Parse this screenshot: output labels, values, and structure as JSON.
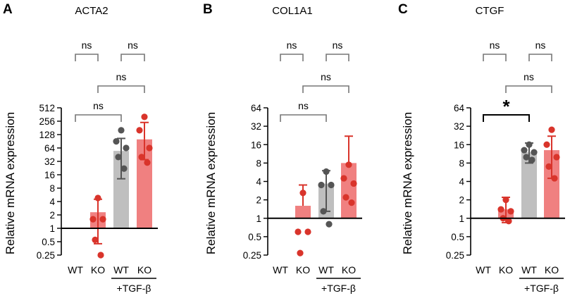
{
  "chart_data": [
    {
      "type": "bar",
      "panel": "A",
      "title": "ACTA2",
      "ylabel": "Relative mRNA expression",
      "yscale": "log2",
      "ylim": [
        0.25,
        512
      ],
      "yticks": [
        0.25,
        0.5,
        1,
        2,
        4,
        8,
        16,
        32,
        64,
        128,
        256,
        512
      ],
      "ytick_labels": [
        "0.25",
        "0.5",
        "1",
        "2",
        "4",
        "8",
        "16",
        "32",
        "64",
        "128",
        "256",
        "512"
      ],
      "baseline": 1,
      "categories": [
        "WT",
        "KO",
        "WT",
        "KO"
      ],
      "treatment_label": "+TGF-β",
      "colors": [
        "#bfbfbf",
        "#f08080",
        "#bfbfbf",
        "#f08080"
      ],
      "point_colors": [
        "#555555",
        "#d9342b",
        "#555555",
        "#d9342b"
      ],
      "values": [
        null,
        2.3,
        55,
        100
      ],
      "error_low": [
        null,
        0.45,
        13,
        35
      ],
      "error_high": [
        null,
        4.5,
        105,
        240
      ],
      "points": [
        [],
        [
          4.8,
          1.6,
          1.6,
          0.55,
          0.25
        ],
        [
          160,
          90,
          64,
          40,
          22
        ],
        [
          320,
          160,
          64,
          40,
          30
        ]
      ],
      "comparisons": [
        {
          "from": 0,
          "to": 1,
          "label": "ns",
          "level": 2
        },
        {
          "from": 2,
          "to": 3,
          "label": "ns",
          "level": 2
        },
        {
          "from": 1,
          "to": 3,
          "label": "ns",
          "level": 1
        },
        {
          "from": 0,
          "to": 2,
          "label": "ns",
          "level": 0
        }
      ]
    },
    {
      "type": "bar",
      "panel": "B",
      "title": "COL1A1",
      "ylabel": "Relative mRNA expression",
      "yscale": "log2",
      "ylim": [
        0.25,
        64
      ],
      "yticks": [
        0.25,
        0.5,
        1,
        2,
        4,
        8,
        16,
        32,
        64
      ],
      "ytick_labels": [
        "0.25",
        "0.5",
        "1",
        "2",
        "4",
        "8",
        "16",
        "32",
        "64"
      ],
      "baseline": 1,
      "categories": [
        "WT",
        "KO",
        "WT",
        "KO"
      ],
      "treatment_label": "+TGF-β",
      "colors": [
        "#bfbfbf",
        "#f08080",
        "#bfbfbf",
        "#f08080"
      ],
      "point_colors": [
        "#555555",
        "#d9342b",
        "#555555",
        "#d9342b"
      ],
      "values": [
        null,
        1.6,
        3.7,
        8
      ],
      "error_low": [
        null,
        null,
        1.3,
        null
      ],
      "error_high": [
        null,
        3.5,
        6,
        22
      ],
      "points": [
        [],
        [
          2.6,
          0.6,
          0.6,
          0.27
        ],
        [
          5.8,
          3.5,
          3.5,
          1.3,
          0.8
        ],
        [
          7.5,
          4.5,
          3.7,
          2.2,
          1.8
        ]
      ],
      "comparisons": [
        {
          "from": 0,
          "to": 1,
          "label": "ns",
          "level": 2
        },
        {
          "from": 2,
          "to": 3,
          "label": "ns",
          "level": 2
        },
        {
          "from": 1,
          "to": 3,
          "label": "ns",
          "level": 1
        },
        {
          "from": 0,
          "to": 2,
          "label": "ns",
          "level": 0
        }
      ]
    },
    {
      "type": "bar",
      "panel": "C",
      "title": "CTGF",
      "ylabel": "Relative mRNA expression",
      "yscale": "log2",
      "ylim": [
        0.25,
        64
      ],
      "yticks": [
        0.25,
        0.5,
        1,
        2,
        4,
        8,
        16,
        32,
        64
      ],
      "ytick_labels": [
        "0.25",
        "0.5",
        "1",
        "2",
        "4",
        "8",
        "16",
        "32",
        "64"
      ],
      "baseline": 1,
      "categories": [
        "WT",
        "KO",
        "WT",
        "KO"
      ],
      "treatment_label": "+TGF-β",
      "colors": [
        "#bfbfbf",
        "#f08080",
        "#bfbfbf",
        "#f08080"
      ],
      "point_colors": [
        "#555555",
        "#d9342b",
        "#555555",
        "#d9342b"
      ],
      "values": [
        null,
        1.4,
        12,
        13
      ],
      "error_low": [
        null,
        0.85,
        8,
        4.5
      ],
      "error_high": [
        null,
        2.2,
        17,
        22
      ],
      "points": [
        [],
        [
          2,
          1.4,
          1.3,
          1,
          0.9
        ],
        [
          16,
          13,
          12,
          10,
          9
        ],
        [
          28,
          16,
          10,
          7,
          4.5
        ]
      ],
      "comparisons": [
        {
          "from": 0,
          "to": 1,
          "label": "ns",
          "level": 2
        },
        {
          "from": 2,
          "to": 3,
          "label": "ns",
          "level": 2
        },
        {
          "from": 1,
          "to": 3,
          "label": "ns",
          "level": 1
        },
        {
          "from": 0,
          "to": 2,
          "label": "*",
          "level": 0
        }
      ]
    }
  ]
}
